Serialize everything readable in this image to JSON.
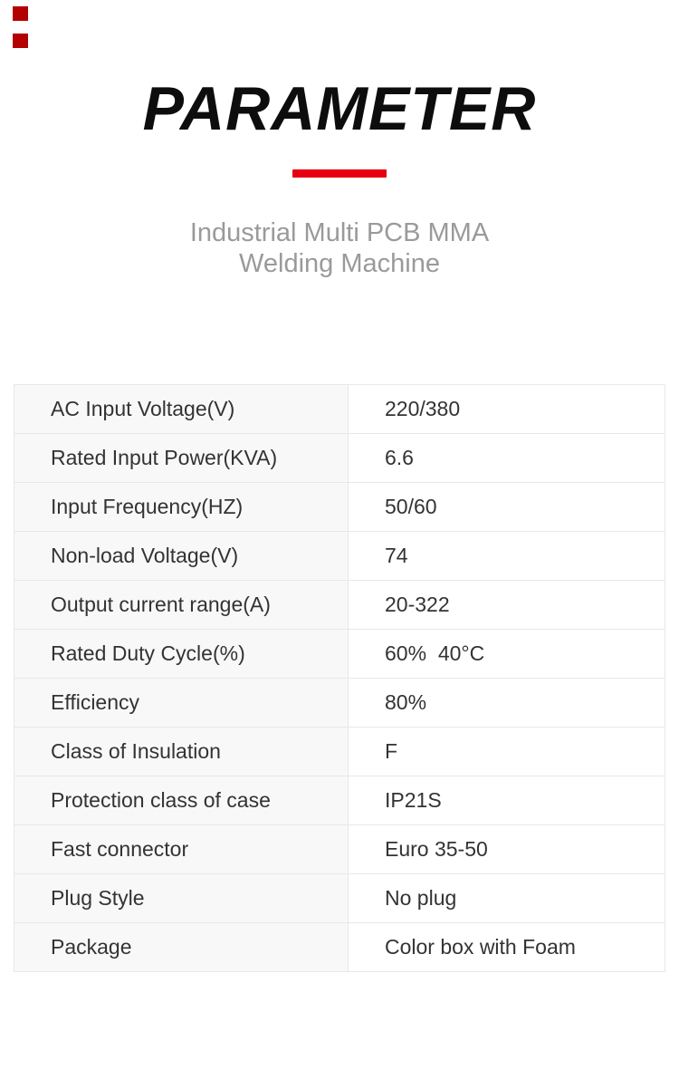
{
  "decor": {
    "corner_mark_color": "#b30000"
  },
  "header": {
    "title": "PARAMETER",
    "accent_color": "#e60012",
    "subtitle_line1": "Industrial Multi PCB MMA",
    "subtitle_line2": "Welding Machine"
  },
  "table": {
    "rows": [
      {
        "label": "AC Input Voltage(V)",
        "value": "220/380"
      },
      {
        "label": "Rated Input Power(KVA)",
        "value": "6.6"
      },
      {
        "label": "Input Frequency(HZ)",
        "value": "50/60"
      },
      {
        "label": "Non-load Voltage(V)",
        "value": "74"
      },
      {
        "label": "Output current range(A)",
        "value": "20-322"
      },
      {
        "label": "Rated Duty Cycle(%)",
        "value": "60%  40°C"
      },
      {
        "label": "Efficiency",
        "value": "80%"
      },
      {
        "label": "Class of Insulation",
        "value": "F"
      },
      {
        "label": "Protection class of case",
        "value": "IP21S"
      },
      {
        "label": "Fast connector",
        "value": "Euro 35-50"
      },
      {
        "label": "Plug Style",
        "value": "No plug"
      },
      {
        "label": "Package",
        "value": "Color box with Foam"
      }
    ]
  }
}
